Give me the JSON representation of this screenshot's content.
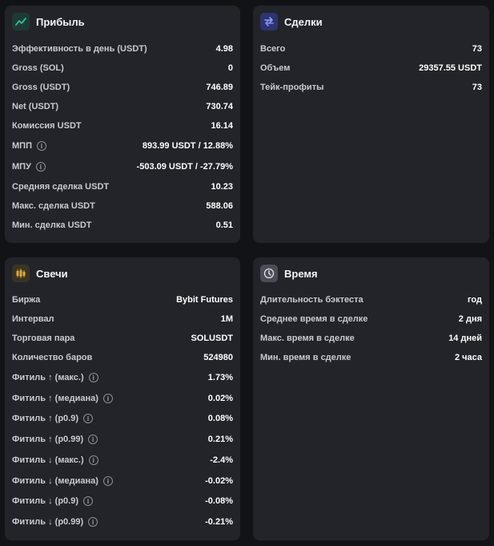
{
  "profit": {
    "title": "Прибыль",
    "rows": [
      {
        "label": "Эффективность в день (USDT)",
        "value": "4.98"
      },
      {
        "label": "Gross (SOL)",
        "value": "0"
      },
      {
        "label": "Gross (USDT)",
        "value": "746.89"
      },
      {
        "label": "Net (USDT)",
        "value": "730.74"
      },
      {
        "label": "Комиссия USDT",
        "value": "16.14"
      },
      {
        "label": "МПП",
        "value": "893.99 USDT / 12.88%"
      },
      {
        "label": "МПУ",
        "value": "-503.09 USDT / -27.79%"
      },
      {
        "label": "Средняя сделка USDT",
        "value": "10.23"
      },
      {
        "label": "Макс. сделка USDT",
        "value": "588.06"
      },
      {
        "label": "Мин. сделка USDT",
        "value": "0.51"
      }
    ]
  },
  "deals": {
    "title": "Сделки",
    "rows": [
      {
        "label": "Всего",
        "value": "73"
      },
      {
        "label": "Объем",
        "value": "29357.55 USDT"
      },
      {
        "label": "Тейк-профиты",
        "value": "73"
      }
    ]
  },
  "candles": {
    "title": "Свечи",
    "rows": [
      {
        "label": "Биржа",
        "value": "Bybit Futures"
      },
      {
        "label": "Интервал",
        "value": "1M"
      },
      {
        "label": "Торговая пара",
        "value": "SOLUSDT"
      },
      {
        "label": "Количество баров",
        "value": "524980"
      },
      {
        "label": "Фитиль ↑ (макс.)",
        "value": "1.73%"
      },
      {
        "label": "Фитиль ↑ (медиана)",
        "value": "0.02%"
      },
      {
        "label": "Фитиль ↑ (p0.9)",
        "value": "0.08%"
      },
      {
        "label": "Фитиль ↑ (p0.99)",
        "value": "0.21%"
      },
      {
        "label": "Фитиль ↓ (макс.)",
        "value": "-2.4%"
      },
      {
        "label": "Фитиль ↓ (медиана)",
        "value": "-0.02%"
      },
      {
        "label": "Фитиль ↓ (p0.9)",
        "value": "-0.08%"
      },
      {
        "label": "Фитиль ↓ (p0.99)",
        "value": "-0.21%"
      }
    ]
  },
  "time": {
    "title": "Время",
    "rows": [
      {
        "label": "Длительность бэктеста",
        "value": "год"
      },
      {
        "label": "Среднее время в сделке",
        "value": "2 дня"
      },
      {
        "label": "Макс. время в сделке",
        "value": "14 дней"
      },
      {
        "label": "Мин. время в сделке",
        "value": "2 часа"
      }
    ]
  },
  "icons": {
    "profit": "trend-chart-icon",
    "deals": "swap-arrows-icon",
    "candles": "candlestick-icon",
    "time": "clock-icon",
    "info": "info-icon",
    "info_glyph": "i"
  },
  "colors": {
    "background": "#121316",
    "card": "#22242a",
    "profit_icon_bg": "#1f3a35",
    "profit_icon": "#2fbf9f",
    "deals_icon_bg": "#2e3470",
    "deals_icon": "#8e9bff",
    "candles_icon_bg": "#3a3424",
    "candles_icon": "#e0a93a",
    "time_icon_bg": "#4a4d55",
    "time_icon": "#e4e5e9"
  }
}
